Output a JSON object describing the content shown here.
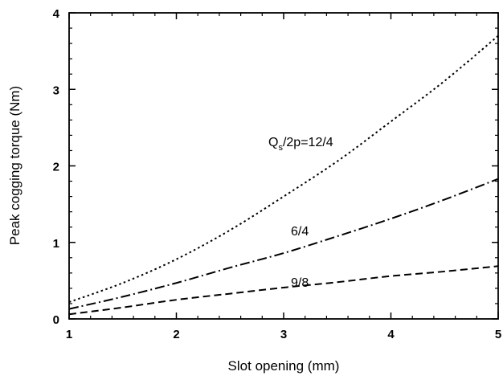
{
  "chart_data": {
    "type": "line",
    "xlabel": "Slot opening (mm)",
    "ylabel": "Peak cogging torque (Nm)",
    "xlim": [
      1,
      5
    ],
    "ylim": [
      0,
      4
    ],
    "xticks": [
      "1",
      "2",
      "3",
      "4",
      "5"
    ],
    "yticks": [
      "0",
      "1",
      "2",
      "3",
      "4"
    ],
    "grid": false,
    "legend": "inline labels",
    "x": [
      1,
      1.5,
      2,
      2.5,
      3,
      3.5,
      4,
      4.5,
      5
    ],
    "series": [
      {
        "label_main": "Q",
        "label_sub": "s",
        "label_tail": "/2p=12/4",
        "style": "dotted",
        "values": [
          0.22,
          0.47,
          0.78,
          1.16,
          1.6,
          2.06,
          2.58,
          3.11,
          3.7
        ]
      },
      {
        "label_main": "6/4",
        "style": "dash-dot",
        "values": [
          0.13,
          0.29,
          0.47,
          0.67,
          0.86,
          1.08,
          1.31,
          1.56,
          1.83
        ]
      },
      {
        "label_main": "9/8",
        "style": "dashed",
        "values": [
          0.06,
          0.15,
          0.25,
          0.33,
          0.41,
          0.48,
          0.56,
          0.62,
          0.69
        ]
      }
    ]
  }
}
